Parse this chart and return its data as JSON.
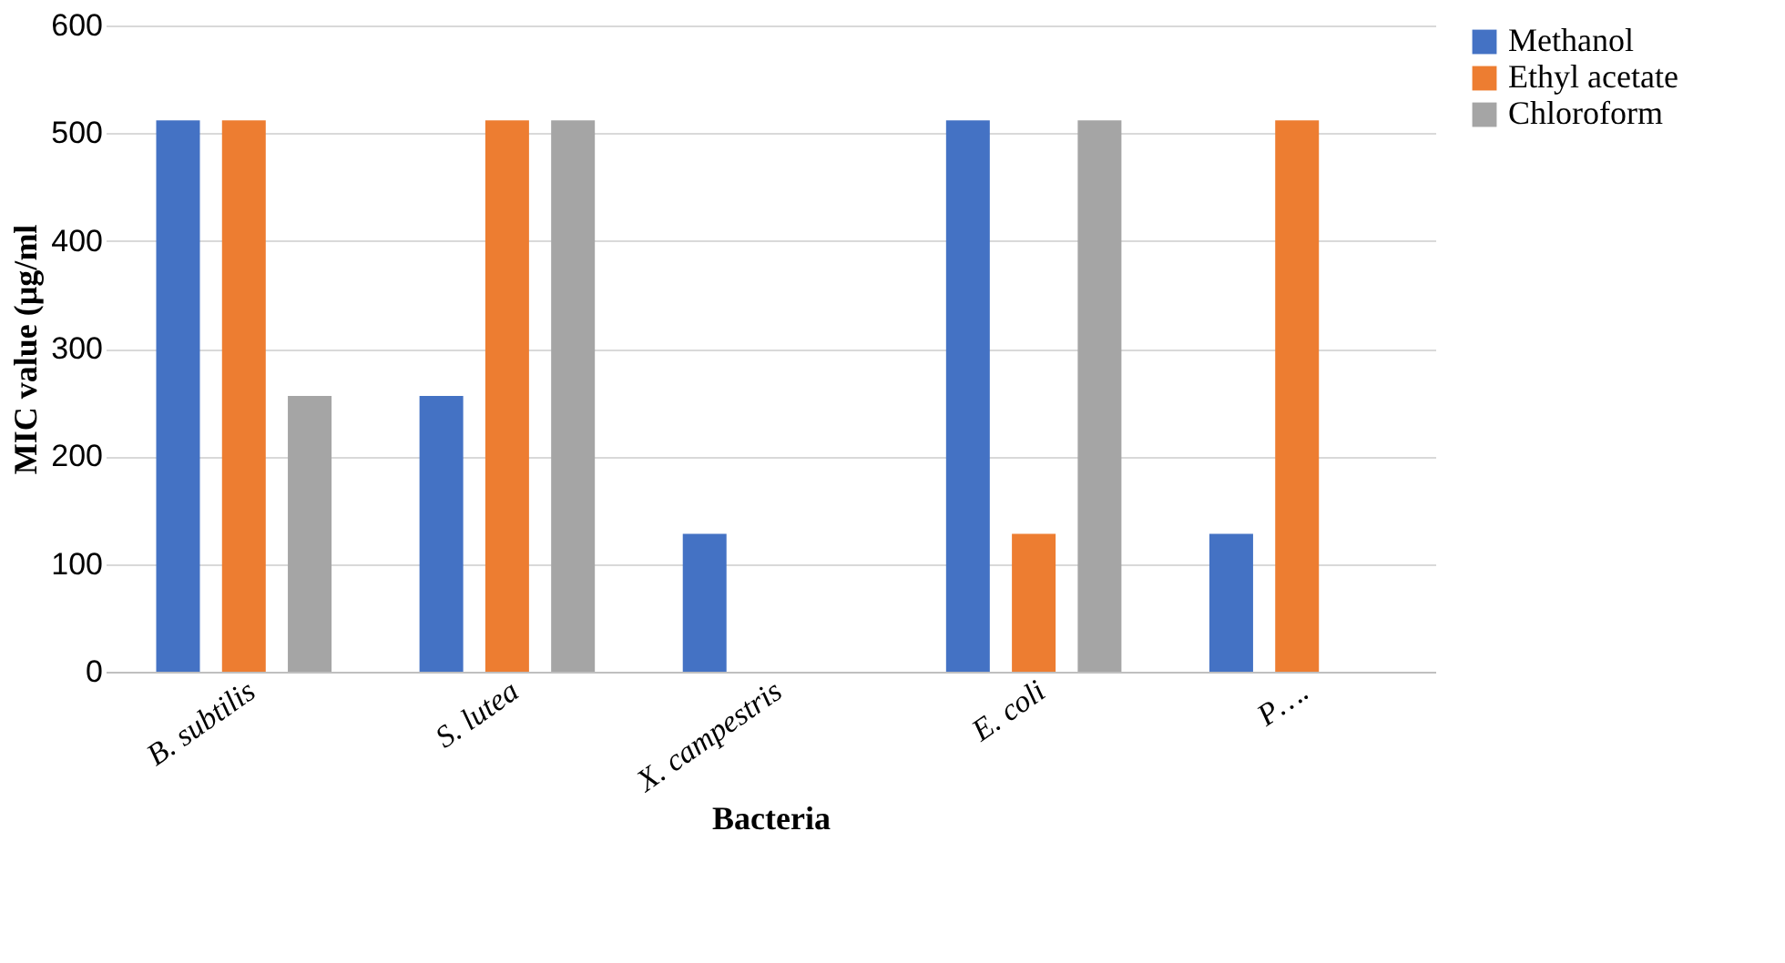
{
  "chart_data": {
    "type": "bar",
    "xlabel": "Bacteria",
    "ylabel": "MIC value (µg/ml",
    "categories": [
      "B. subtilis",
      "S. lutea",
      "X. campestris",
      "E. coli",
      "P…."
    ],
    "series": [
      {
        "name": "Methanol",
        "color": "#4472c4",
        "values": [
          512,
          256,
          128,
          512,
          128
        ]
      },
      {
        "name": "Ethyl acetate",
        "color": "#ed7d31",
        "values": [
          512,
          512,
          0,
          128,
          512
        ]
      },
      {
        "name": "Chloroform",
        "color": "#a5a5a5",
        "values": [
          256,
          512,
          0,
          512,
          0
        ]
      }
    ],
    "ylim": [
      0,
      600
    ],
    "yticks": [
      0,
      100,
      200,
      300,
      400,
      500,
      600
    ],
    "grid": "y",
    "legend": "right"
  }
}
